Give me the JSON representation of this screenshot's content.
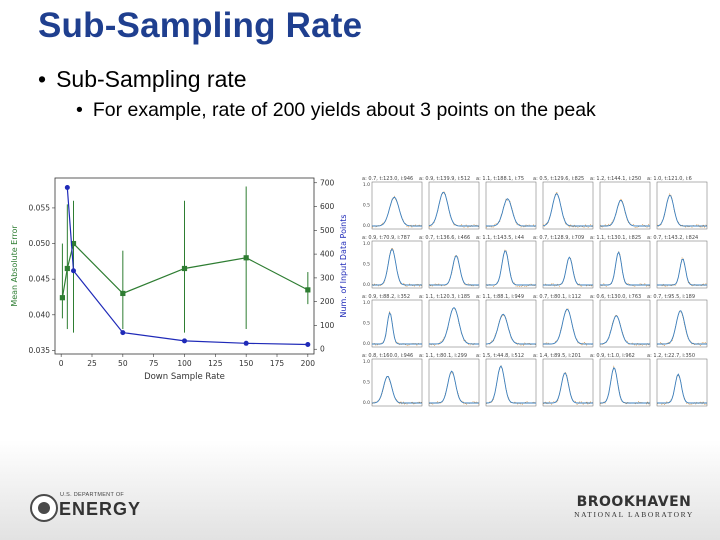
{
  "slide": {
    "title": "Sub-Sampling Rate",
    "bullet_1": "Sub-Sampling rate",
    "bullet_2": "For example, rate of 200 yields about 3 points on the peak",
    "bullet_char": "•"
  },
  "logos": {
    "doe_small": "U.S. DEPARTMENT OF",
    "doe_big": "ENERGY",
    "bnl_big": "BROOKHAVEN",
    "bnl_small": "NATIONAL LABORATORY"
  },
  "chart_data": [
    {
      "type": "line",
      "xlabel": "Down Sample Rate",
      "ylabel_left": "Mean Absolute Error",
      "ylabel_right": "Num. of Input Data Points",
      "xlim": [
        -5,
        205
      ],
      "ylim_left": [
        0.0345,
        0.0592
      ],
      "ylim_right": [
        -20,
        720
      ],
      "x_ticks": [
        "0",
        "25",
        "50",
        "75",
        "100",
        "125",
        "150",
        "175",
        "200"
      ],
      "y_ticks_left": [
        "0.035",
        "0.040",
        "0.045",
        "0.050",
        "0.055"
      ],
      "y_ticks_right": [
        "0",
        "100",
        "200",
        "300",
        "400",
        "500",
        "600",
        "700"
      ],
      "series": [
        {
          "axis": "left",
          "color": "#2e7d32",
          "marker": "square",
          "x": [
            1,
            5,
            10,
            50,
            100,
            150,
            200
          ],
          "y": [
            0.0424,
            0.0465,
            0.05,
            0.043,
            0.0465,
            0.048,
            0.0435
          ],
          "err_low": [
            0.0395,
            0.038,
            0.0375,
            0.038,
            0.0375,
            0.038,
            0.0415
          ],
          "err_high": [
            0.05,
            0.0555,
            0.056,
            0.049,
            0.056,
            0.058,
            0.046
          ]
        },
        {
          "axis": "right",
          "color": "#1f2ab8",
          "marker": "circle",
          "x": [
            5,
            10,
            50,
            100,
            150,
            200
          ],
          "y": [
            680,
            330,
            70,
            35,
            25,
            20
          ]
        }
      ]
    },
    {
      "type": "line",
      "layout": "small-multiples 6x4",
      "panel_titles": [
        "a: 0.7, t:123.0, i:946",
        "a: 0.9, t:139.9, i:512",
        "a: 1.1, t:188.1, i:75",
        "a: 0.5, t:129.6, i:825",
        "a: 1.2, t:144.1, i:250",
        "a: 1.0, t:121.0, i:6",
        "a: 0.9, t:70.9, i:787",
        "a: 0.7, t:136.6, i:466",
        "a: 1.1, t:143.5, i:44",
        "a: 0.7, t:128.9, i:709",
        "a: 1.1, t:130.1, i:825",
        "a: 0.7, t:143.2, i:824",
        "a: 0.9, t:88.2, i:352",
        "a: 1.1, t:120.3, i:185",
        "a: 1.1, t:88.1, i:949",
        "a: 0.7, t:80.1, i:112",
        "a: 0.6, t:130.0, i:763",
        "a: 0.7, t:95.5, i:189",
        "a: 0.8, t:160.0, i:946",
        "a: 1.1, t:80.1, i:299",
        "a: 1.5, t:44.8, i:512",
        "a: 1.4, t:89.5, i:201",
        "a: 0.9, t:1.0, i:962",
        "a: 1.2, t:22.7, i:350"
      ],
      "y_ticks": [
        "1.0",
        "0.5",
        "0.0"
      ],
      "series": [
        {
          "name": "",
          "color": "#3a7fbf"
        },
        {
          "name": "",
          "color": "#d9892b"
        }
      ]
    }
  ]
}
